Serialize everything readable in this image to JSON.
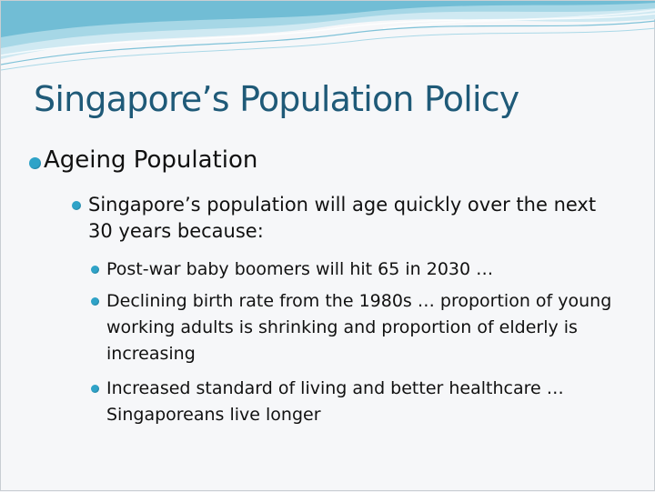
{
  "slide": {
    "title": "Singapore’s Population Policy",
    "bullets": {
      "level1": "Ageing Population",
      "level2": "Singapore’s population will age quickly over the next 30 years because:",
      "level3": [
        "Post-war baby boomers will hit 65 in 2030 …",
        "Declining birth rate from the 1980s … proportion of young working adults is shrinking and proportion of elderly is increasing",
        "Increased standard of living and better healthcare … Singaporeans live longer"
      ]
    }
  },
  "colors": {
    "title": "#1f5a78",
    "bullet": "#2fa3c8",
    "wave_light": "#bfe3ee",
    "wave_mid": "#8fcadf",
    "wave_dark": "#4aa8c6"
  }
}
